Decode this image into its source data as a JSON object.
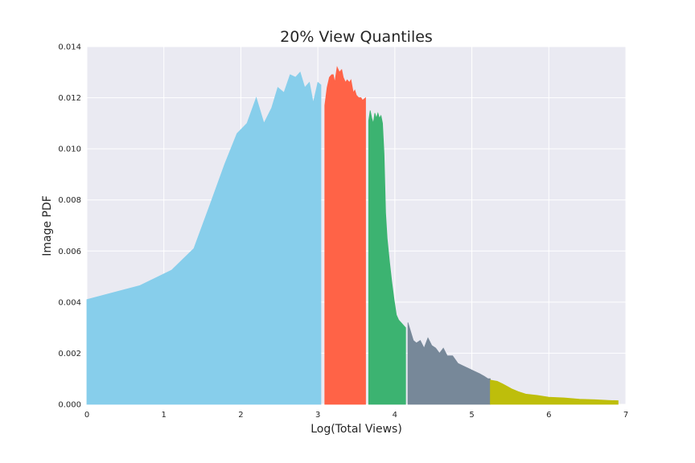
{
  "chart_data": {
    "type": "area",
    "title": "20% View Quantiles",
    "xlabel": "Log(Total Views)",
    "ylabel": "Image PDF",
    "xlim": [
      0,
      7
    ],
    "ylim": [
      0,
      0.014
    ],
    "x_ticks": [
      "0",
      "1",
      "2",
      "3",
      "4",
      "5",
      "6",
      "7"
    ],
    "y_ticks": [
      "0.000",
      "0.002",
      "0.004",
      "0.006",
      "0.008",
      "0.010",
      "0.012",
      "0.014"
    ],
    "grid": true,
    "background": "#eaeaf2",
    "segments": [
      {
        "color": "#87ceeb",
        "points": [
          [
            0.0,
            0.0041
          ],
          [
            0.69,
            0.00465
          ],
          [
            1.1,
            0.00525
          ],
          [
            1.39,
            0.0061
          ],
          [
            1.61,
            0.0079
          ],
          [
            1.79,
            0.0094
          ],
          [
            1.95,
            0.0106
          ],
          [
            2.08,
            0.011
          ],
          [
            2.2,
            0.012
          ],
          [
            2.3,
            0.011
          ],
          [
            2.4,
            0.0116
          ],
          [
            2.48,
            0.0124
          ],
          [
            2.56,
            0.0122
          ],
          [
            2.64,
            0.0129
          ],
          [
            2.71,
            0.0128
          ],
          [
            2.77,
            0.013
          ],
          [
            2.83,
            0.0124
          ],
          [
            2.89,
            0.0126
          ],
          [
            2.94,
            0.0118
          ],
          [
            3.0,
            0.0126
          ],
          [
            3.04,
            0.0125
          ]
        ]
      },
      {
        "color": "#ff6347",
        "points": [
          [
            3.09,
            0.0117
          ],
          [
            3.12,
            0.0124
          ],
          [
            3.15,
            0.0128
          ],
          [
            3.18,
            0.0129
          ],
          [
            3.2,
            0.0129
          ],
          [
            3.22,
            0.0126
          ],
          [
            3.25,
            0.0132
          ],
          [
            3.28,
            0.013
          ],
          [
            3.31,
            0.0131
          ],
          [
            3.33,
            0.0128
          ],
          [
            3.36,
            0.0126
          ],
          [
            3.38,
            0.0127
          ],
          [
            3.41,
            0.0126
          ],
          [
            3.43,
            0.0127
          ],
          [
            3.46,
            0.0122
          ],
          [
            3.48,
            0.0123
          ],
          [
            3.5,
            0.0121
          ],
          [
            3.53,
            0.012
          ],
          [
            3.56,
            0.012
          ],
          [
            3.58,
            0.0119
          ],
          [
            3.62,
            0.012
          ]
        ]
      },
      {
        "color": "#3cb371",
        "points": [
          [
            3.66,
            0.0111
          ],
          [
            3.68,
            0.0115
          ],
          [
            3.7,
            0.0112
          ],
          [
            3.72,
            0.011
          ],
          [
            3.74,
            0.0114
          ],
          [
            3.76,
            0.0112
          ],
          [
            3.78,
            0.0114
          ],
          [
            3.8,
            0.0112
          ],
          [
            3.82,
            0.0113
          ],
          [
            3.84,
            0.011
          ],
          [
            3.86,
            0.0098
          ],
          [
            3.88,
            0.0075
          ],
          [
            3.9,
            0.0065
          ],
          [
            3.93,
            0.0056
          ],
          [
            3.96,
            0.0048
          ],
          [
            3.99,
            0.0041
          ],
          [
            4.02,
            0.0035
          ],
          [
            4.05,
            0.0033
          ],
          [
            4.08,
            0.0032
          ],
          [
            4.11,
            0.0031
          ],
          [
            4.14,
            0.003
          ]
        ]
      },
      {
        "color": "#778899",
        "points": [
          [
            4.17,
            0.0032
          ],
          [
            4.2,
            0.0029
          ],
          [
            4.24,
            0.0025
          ],
          [
            4.28,
            0.0024
          ],
          [
            4.33,
            0.0025
          ],
          [
            4.38,
            0.0022
          ],
          [
            4.43,
            0.0026
          ],
          [
            4.48,
            0.0023
          ],
          [
            4.53,
            0.0022
          ],
          [
            4.58,
            0.002
          ],
          [
            4.63,
            0.0022
          ],
          [
            4.68,
            0.0019
          ],
          [
            4.75,
            0.0019
          ],
          [
            4.82,
            0.0016
          ],
          [
            4.89,
            0.0015
          ],
          [
            4.96,
            0.0014
          ],
          [
            5.03,
            0.0013
          ],
          [
            5.1,
            0.0012
          ],
          [
            5.16,
            0.0011
          ],
          [
            5.21,
            0.001
          ],
          [
            5.24,
            0.001
          ]
        ]
      },
      {
        "color": "#bebe0b",
        "points": [
          [
            5.24,
            0.00095
          ],
          [
            5.33,
            0.0009
          ],
          [
            5.4,
            0.0008
          ],
          [
            5.46,
            0.0007
          ],
          [
            5.52,
            0.0006
          ],
          [
            5.6,
            0.0005
          ],
          [
            5.7,
            0.0004
          ],
          [
            5.85,
            0.00035
          ],
          [
            6.0,
            0.00028
          ],
          [
            6.2,
            0.00025
          ],
          [
            6.4,
            0.0002
          ],
          [
            6.6,
            0.00018
          ],
          [
            6.8,
            0.00015
          ],
          [
            6.9,
            0.00014
          ]
        ]
      }
    ]
  }
}
